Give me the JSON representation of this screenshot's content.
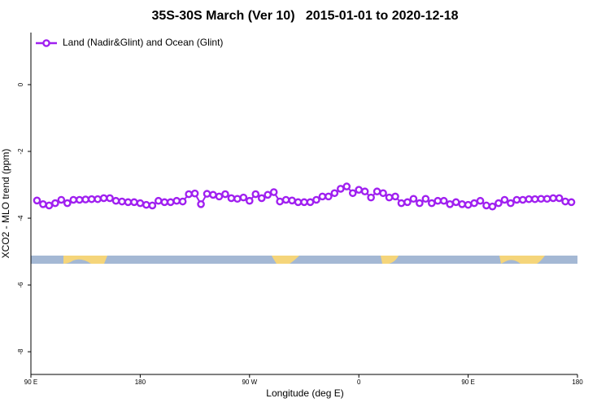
{
  "chart_data": {
    "type": "line",
    "title": "35S-30S March (Ver 10)   2015-01-01 to 2020-12-18",
    "x_label": "Longitude (deg E)",
    "y_label": "XCO2 - MLO trend (ppm)",
    "xlim": [
      90,
      540
    ],
    "ylim": [
      -8.68,
      1.56
    ],
    "xticks": [
      {
        "value": 90,
        "label": "90 E"
      },
      180,
      {
        "value": 270,
        "label": "90 W"
      },
      {
        "value": 360,
        "label": "0"
      },
      {
        "value": 450,
        "label": "90 E"
      },
      {
        "value": 540,
        "label": "180"
      }
    ],
    "yticks": [
      0,
      -2,
      -4,
      -6,
      -8
    ],
    "legend": "top-left",
    "x": [
      95,
      100,
      105,
      110,
      115,
      120,
      125,
      130,
      135,
      140,
      145,
      150,
      155,
      160,
      165,
      170,
      175,
      180,
      185,
      190,
      195,
      200,
      205,
      210,
      215,
      220,
      225,
      230,
      235,
      240,
      245,
      250,
      255,
      260,
      265,
      270,
      275,
      280,
      285,
      290,
      295,
      300,
      305,
      310,
      315,
      320,
      325,
      330,
      335,
      340,
      345,
      350,
      355,
      360,
      365,
      370,
      375,
      380,
      385,
      390,
      395,
      400,
      405,
      410,
      415,
      420,
      425,
      430,
      435,
      440,
      445,
      450,
      455,
      460,
      465,
      470,
      475,
      480,
      485,
      490,
      495,
      500,
      505,
      510,
      515,
      520,
      525,
      530,
      535
    ],
    "series": [
      {
        "name": "Land (Nadir&Glint) and Ocean (Glint)",
        "color": "#a020f0",
        "values": [
          -3.47,
          -3.58,
          -3.62,
          -3.55,
          -3.45,
          -3.55,
          -3.45,
          -3.45,
          -3.44,
          -3.43,
          -3.43,
          -3.4,
          -3.4,
          -3.48,
          -3.5,
          -3.52,
          -3.52,
          -3.55,
          -3.6,
          -3.62,
          -3.48,
          -3.52,
          -3.52,
          -3.48,
          -3.5,
          -3.28,
          -3.26,
          -3.58,
          -3.27,
          -3.3,
          -3.35,
          -3.28,
          -3.4,
          -3.42,
          -3.38,
          -3.48,
          -3.28,
          -3.4,
          -3.3,
          -3.22,
          -3.5,
          -3.45,
          -3.47,
          -3.52,
          -3.52,
          -3.52,
          -3.45,
          -3.35,
          -3.35,
          -3.25,
          -3.12,
          -3.05,
          -3.25,
          -3.15,
          -3.2,
          -3.38,
          -3.2,
          -3.25,
          -3.38,
          -3.35,
          -3.55,
          -3.52,
          -3.42,
          -3.55,
          -3.42,
          -3.55,
          -3.48,
          -3.48,
          -3.58,
          -3.52,
          -3.58,
          -3.6,
          -3.55,
          -3.48,
          -3.62,
          -3.65,
          -3.55,
          -3.45,
          -3.55,
          -3.45,
          -3.45,
          -3.43,
          -3.43,
          -3.42,
          -3.42,
          -3.4,
          -3.4,
          -3.5,
          -3.52
        ]
      }
    ]
  }
}
